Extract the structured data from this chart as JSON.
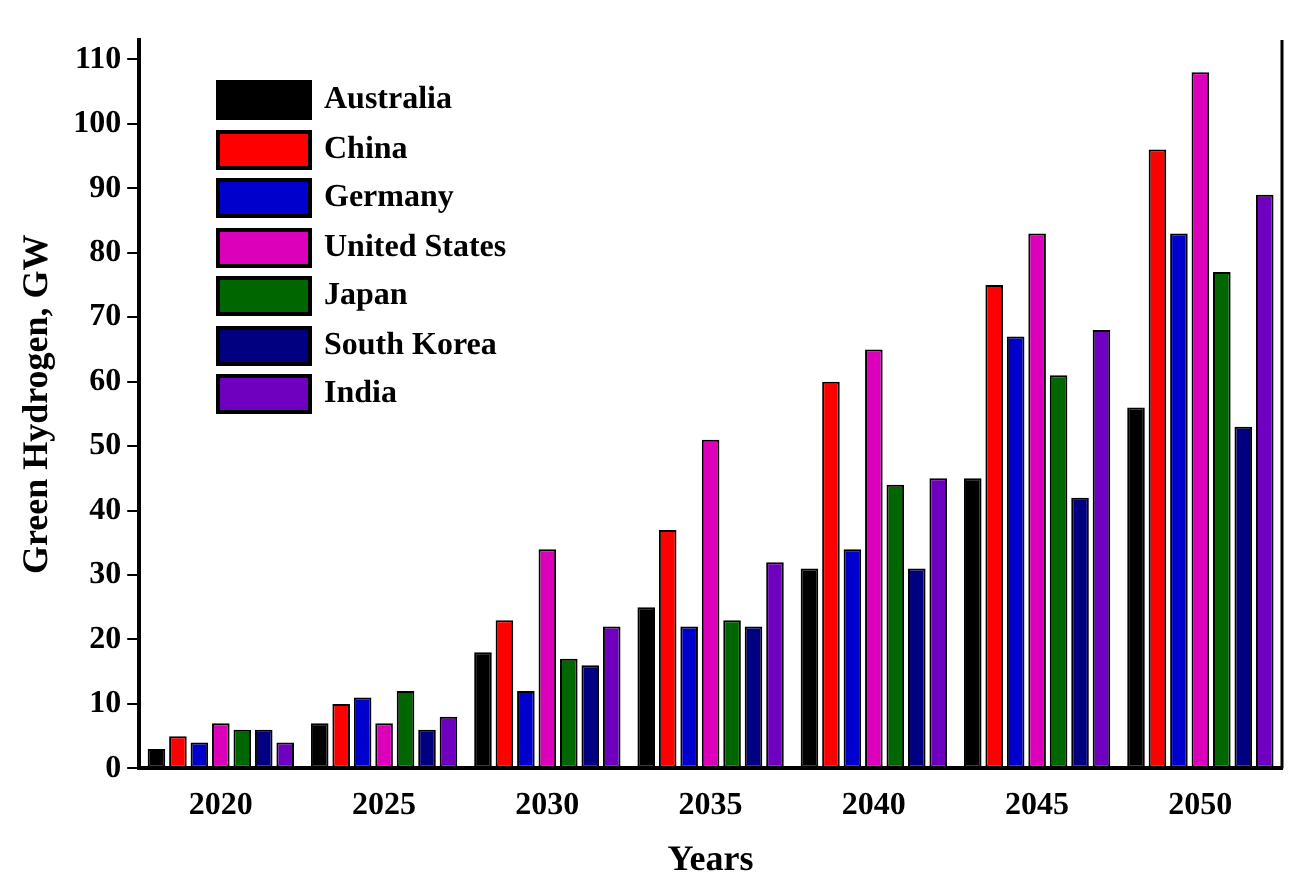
{
  "chart_data": {
    "type": "bar",
    "xlabel": "Years",
    "ylabel": "Green Hydrogen, GW",
    "categories": [
      "2020",
      "2025",
      "2030",
      "2035",
      "2040",
      "2045",
      "2050"
    ],
    "series": [
      {
        "name": "Australia",
        "color": "#000000",
        "values": [
          3,
          7,
          18,
          25,
          31,
          45,
          56
        ]
      },
      {
        "name": "China",
        "color": "#ff0000",
        "values": [
          5,
          10,
          23,
          37,
          60,
          75,
          96
        ]
      },
      {
        "name": "Germany",
        "color": "#0000cc",
        "values": [
          4,
          11,
          12,
          22,
          34,
          67,
          83
        ]
      },
      {
        "name": "United States",
        "color": "#dd00bb",
        "values": [
          7,
          7,
          34,
          51,
          65,
          83,
          108
        ]
      },
      {
        "name": "Japan",
        "color": "#006600",
        "values": [
          6,
          12,
          17,
          23,
          44,
          61,
          77
        ]
      },
      {
        "name": "South Korea",
        "color": "#000080",
        "values": [
          6,
          6,
          16,
          22,
          31,
          42,
          53
        ]
      },
      {
        "name": "India",
        "color": "#7000c0",
        "values": [
          4,
          8,
          22,
          32,
          45,
          68,
          89
        ]
      }
    ],
    "ylim": [
      0,
      113
    ],
    "yticks": [
      0,
      10,
      20,
      30,
      40,
      50,
      60,
      70,
      80,
      90,
      100,
      110
    ],
    "grid": false,
    "legend": "top left"
  }
}
